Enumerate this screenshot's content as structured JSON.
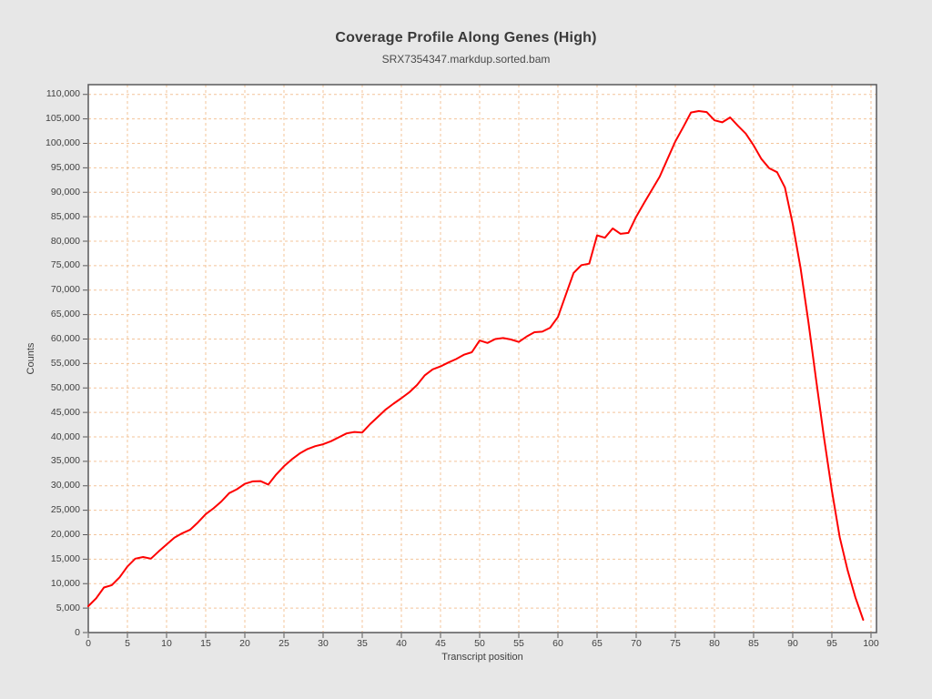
{
  "chart_data": {
    "type": "line",
    "title": "Coverage Profile Along Genes (High)",
    "subtitle": "SRX7354347.markdup.sorted.bam",
    "xlabel": "Transcript position",
    "ylabel": "Counts",
    "legend": "none",
    "grid": true,
    "x_ticks": [
      0,
      5,
      10,
      15,
      20,
      25,
      30,
      35,
      40,
      45,
      50,
      55,
      60,
      65,
      70,
      75,
      80,
      85,
      90,
      95,
      100
    ],
    "y_ticks": [
      0,
      5000,
      10000,
      15000,
      20000,
      25000,
      30000,
      35000,
      40000,
      45000,
      50000,
      55000,
      60000,
      65000,
      70000,
      75000,
      80000,
      85000,
      90000,
      95000,
      100000,
      105000,
      110000
    ],
    "xlim": [
      0,
      100.7
    ],
    "ylim": [
      0,
      112000
    ],
    "series": [
      {
        "name": "coverage",
        "x_start": 0,
        "x_step": 1,
        "values": [
          5400,
          7000,
          9200,
          9700,
          11300,
          13500,
          15100,
          15450,
          15100,
          16600,
          18000,
          19400,
          20300,
          21000,
          22500,
          24200,
          25400,
          26800,
          28500,
          29300,
          30400,
          30900,
          30950,
          30250,
          32300,
          34000,
          35400,
          36600,
          37500,
          38100,
          38500,
          39100,
          39900,
          40700,
          41000,
          40900,
          42600,
          44100,
          45600,
          46800,
          47900,
          49100,
          50600,
          52600,
          53800,
          54400,
          55200,
          55900,
          56800,
          57300,
          59700,
          59200,
          60000,
          60200,
          59900,
          59400,
          60500,
          61400,
          61500,
          62300,
          64500,
          69000,
          73500,
          75100,
          75400,
          81200,
          80700,
          82600,
          81500,
          81700,
          85000,
          87800,
          90500,
          93200,
          96800,
          100400,
          103300,
          106300,
          106600,
          106400,
          104700,
          104300,
          105300,
          103600,
          102000,
          99600,
          96800,
          94900,
          94100,
          91000,
          83500,
          74500,
          63500,
          51500,
          39800,
          29000,
          19500,
          12800,
          7200,
          2600
        ]
      }
    ],
    "colors": {
      "line": "#fe0000",
      "grid": "#f3c49a",
      "plot_border": "#58585a",
      "tick_mark": "#58585a",
      "plot_bg": "#ffffff",
      "page_bg": "#e7e7e7",
      "text": "#3f3f3f"
    }
  }
}
